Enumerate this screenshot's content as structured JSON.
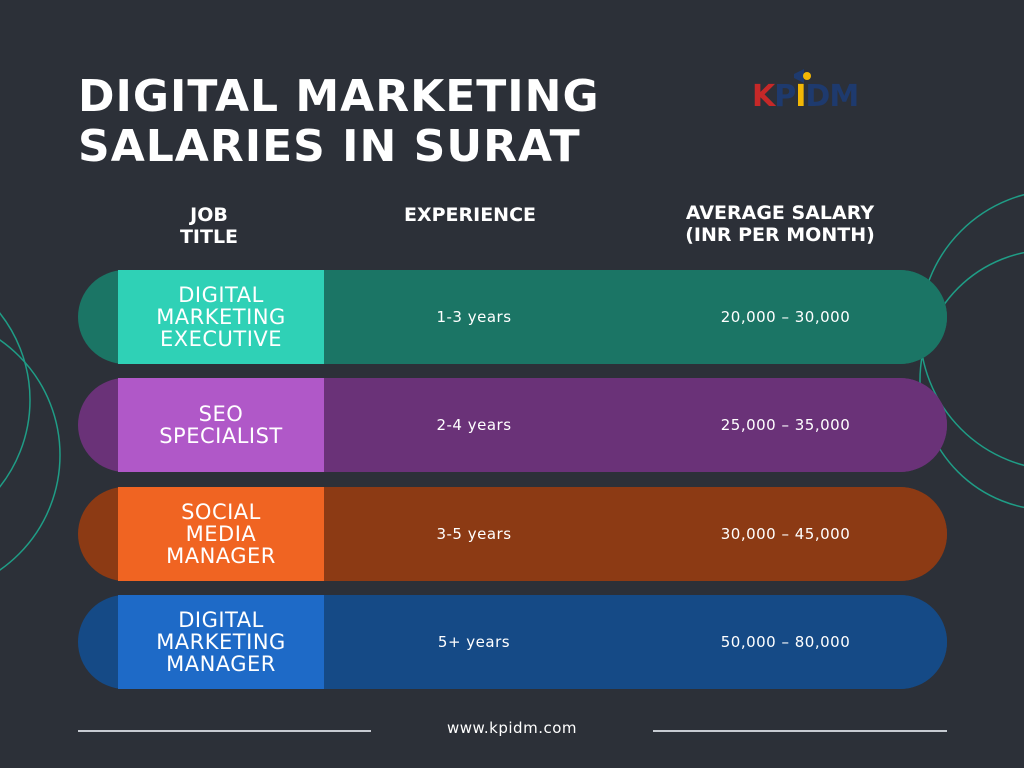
{
  "title": {
    "line1": "DIGITAL MARKETING",
    "line2": "SALARIES IN SURAT"
  },
  "logo": {
    "k": "K",
    "p": "P",
    "i": "I",
    "d": "D",
    "m": "M",
    "colors": {
      "k": "#c62828",
      "p": "#1e3a6e",
      "i": "#f2b705",
      "d": "#1e3a6e",
      "m": "#1e3a6e"
    }
  },
  "table": {
    "headers": {
      "job_line1": "JOB",
      "job_line2": "TITLE",
      "experience": "EXPERIENCE",
      "salary_line1": "AVERAGE SALARY",
      "salary_line2": "(INR PER MONTH)"
    },
    "rows": [
      {
        "title_lines": [
          "DIGITAL",
          "MARKETING",
          "EXECUTIVE"
        ],
        "experience": "1-3 years",
        "salary": "20,000 – 30,000",
        "colors": {
          "base": "#1b7565",
          "title": "#2fd1b6"
        }
      },
      {
        "title_lines": [
          "SEO",
          "SPECIALIST"
        ],
        "experience": "2-4 years",
        "salary": "25,000 – 35,000",
        "colors": {
          "base": "#6a3278",
          "title": "#b058c8"
        }
      },
      {
        "title_lines": [
          "SOCIAL",
          "MEDIA",
          "MANAGER"
        ],
        "experience": "3-5 years",
        "salary": "30,000 – 45,000",
        "colors": {
          "base": "#8c3a14",
          "title": "#f06422"
        }
      },
      {
        "title_lines": [
          "DIGITAL",
          "MARKETING",
          "MANAGER"
        ],
        "experience": "5+ years",
        "salary": "50,000 – 80,000",
        "colors": {
          "base": "#154a86",
          "title": "#1e6ac7"
        }
      }
    ]
  },
  "footer": {
    "website": "www.kpidm.com"
  },
  "colors": {
    "background": "#2c3038",
    "decor_circle": "#1f9d86",
    "divider": "#c7cbd2"
  }
}
